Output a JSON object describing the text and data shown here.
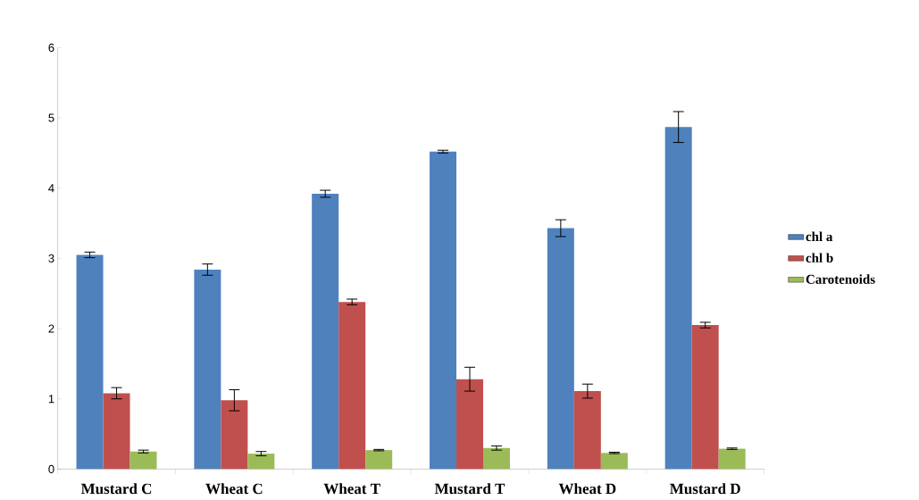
{
  "chart_data": {
    "type": "bar",
    "categories": [
      "Mustard C",
      "Wheat C",
      "Wheat T",
      "Mustard T",
      "Wheat D",
      "Mustard D"
    ],
    "series": [
      {
        "name": "chl a",
        "color": "#4f81bd",
        "values": [
          3.05,
          2.84,
          3.92,
          4.52,
          3.43,
          4.87
        ],
        "errors": [
          0.04,
          0.08,
          0.05,
          0.02,
          0.12,
          0.22
        ]
      },
      {
        "name": "chl b",
        "color": "#c0504d",
        "values": [
          1.08,
          0.98,
          2.38,
          1.28,
          1.11,
          2.05
        ],
        "errors": [
          0.08,
          0.15,
          0.04,
          0.17,
          0.1,
          0.04
        ]
      },
      {
        "name": "Carotenoids",
        "color": "#9bbb59",
        "values": [
          0.25,
          0.22,
          0.27,
          0.3,
          0.23,
          0.29
        ],
        "errors": [
          0.02,
          0.03,
          0.01,
          0.03,
          0.01,
          0.01
        ]
      }
    ],
    "ylim": [
      0,
      6
    ],
    "yticks": [
      0,
      1,
      2,
      3,
      4,
      5,
      6
    ],
    "grid": false,
    "legend": "right"
  }
}
